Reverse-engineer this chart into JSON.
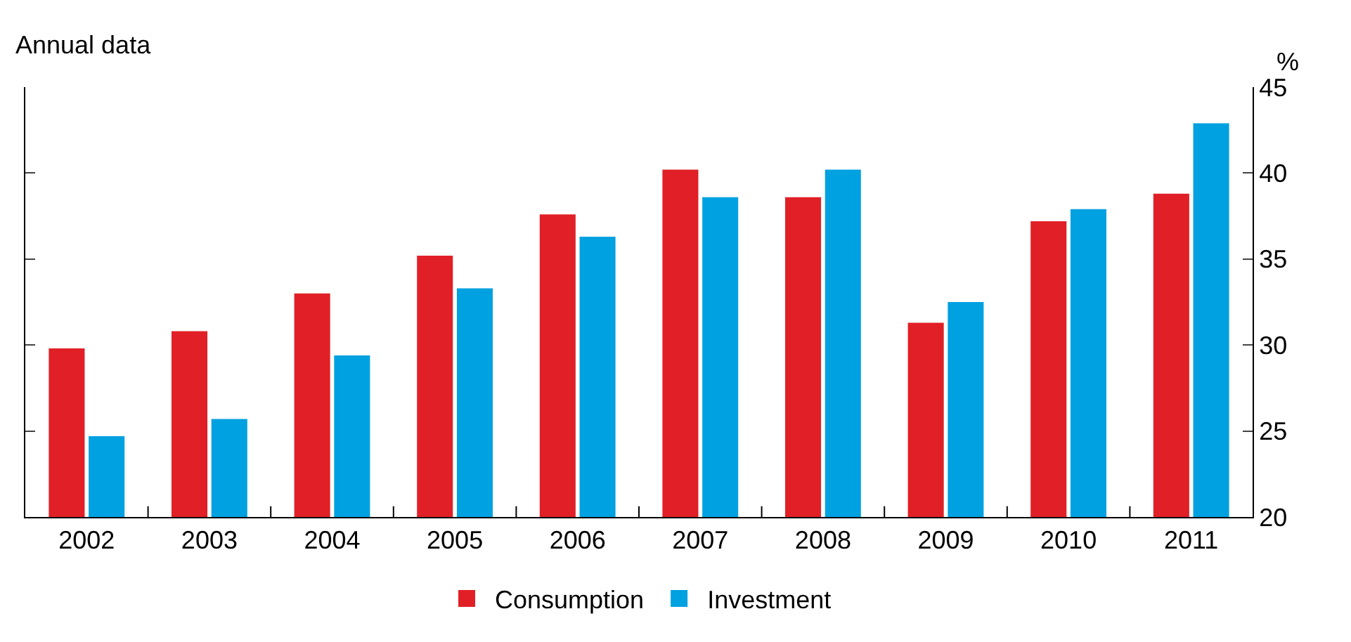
{
  "chart_data": {
    "type": "bar",
    "ylabel": "%",
    "annotations": [
      "Annual data"
    ],
    "categories": [
      "2002",
      "2003",
      "2004",
      "2005",
      "2006",
      "2007",
      "2008",
      "2009",
      "2010",
      "2011"
    ],
    "series": [
      {
        "name": "Consumption",
        "color": "#e02026",
        "values": [
          29.8,
          30.8,
          33.0,
          35.2,
          37.6,
          40.2,
          38.6,
          31.3,
          37.2,
          38.8
        ]
      },
      {
        "name": "Investment",
        "color": "#00a1e0",
        "values": [
          24.7,
          25.7,
          29.4,
          33.3,
          36.3,
          38.6,
          40.2,
          32.5,
          37.9,
          42.9
        ]
      }
    ],
    "ylim": [
      20,
      45
    ],
    "yticks": [
      20,
      25,
      30,
      35,
      40,
      45
    ],
    "legend": "bottom"
  }
}
